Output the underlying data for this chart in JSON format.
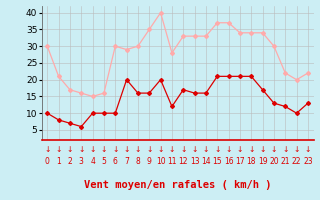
{
  "x": [
    0,
    1,
    2,
    3,
    4,
    5,
    6,
    7,
    8,
    9,
    10,
    11,
    12,
    13,
    14,
    15,
    16,
    17,
    18,
    19,
    20,
    21,
    22,
    23
  ],
  "wind_mean": [
    10,
    8,
    7,
    6,
    10,
    10,
    10,
    20,
    16,
    16,
    20,
    12,
    17,
    16,
    16,
    21,
    21,
    21,
    21,
    17,
    13,
    12,
    10,
    13
  ],
  "wind_gust": [
    30,
    21,
    17,
    16,
    15,
    16,
    30,
    29,
    30,
    35,
    40,
    28,
    33,
    33,
    33,
    37,
    37,
    34,
    34,
    34,
    30,
    22,
    20,
    22
  ],
  "mean_color": "#dd0000",
  "gust_color": "#ffaaaa",
  "bg_color": "#cceef4",
  "grid_color": "#bbbbbb",
  "ylabel_ticks": [
    5,
    10,
    15,
    20,
    25,
    30,
    35,
    40
  ],
  "ylim": [
    2,
    42
  ],
  "xlim": [
    -0.5,
    23.5
  ],
  "xlabel": "Vent moyen/en rafales ( km/h )",
  "tick_fontsize": 6.5,
  "label_fontsize": 7.5
}
